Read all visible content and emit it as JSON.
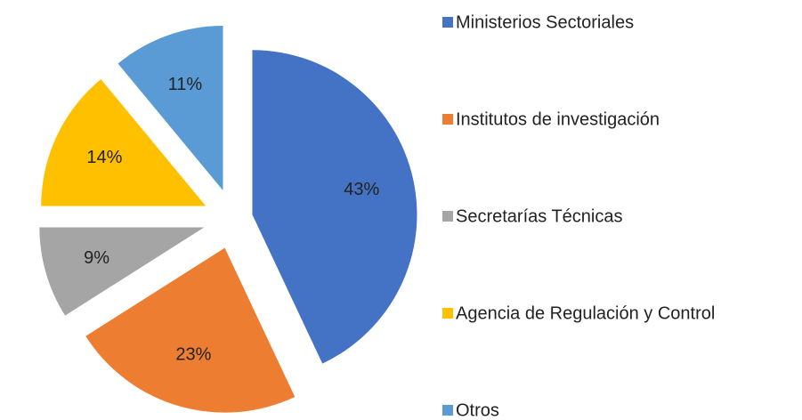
{
  "chart_data": {
    "type": "pie",
    "categories": [
      "Ministerios Sectoriales",
      "Institutos de investigación",
      "Secretarías Técnicas",
      "Agencia de Regulación y Control",
      "Otros"
    ],
    "values": [
      43,
      23,
      9,
      14,
      11
    ],
    "value_labels": [
      "43%",
      "23%",
      "9%",
      "14%",
      "11%"
    ],
    "colors": [
      "#4472c4",
      "#ed7d31",
      "#a5a5a5",
      "#ffc000",
      "#5b9bd5"
    ],
    "legend": "right"
  }
}
